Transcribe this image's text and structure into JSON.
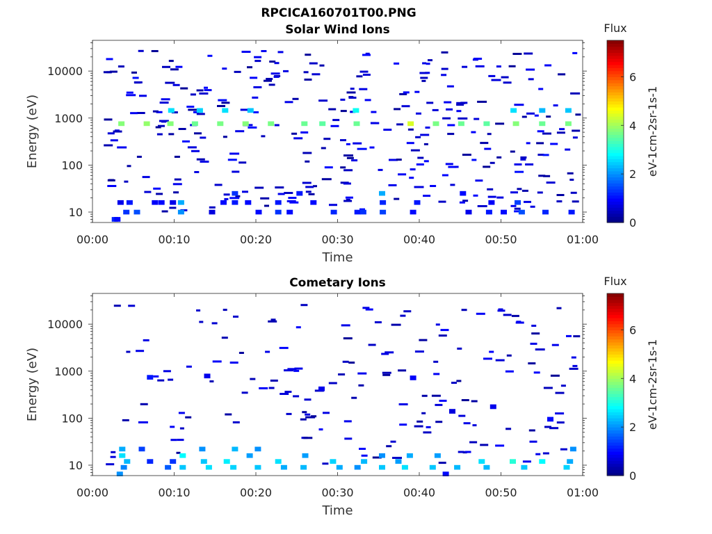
{
  "figure_title": "RPCICA160701T00.PNG",
  "chart_data": [
    {
      "type": "heatmap",
      "title": "Solar Wind Ions",
      "xlabel": "Time",
      "ylabel": "Energy (eV)",
      "x_ticks": [
        "00:00",
        "00:10",
        "00:20",
        "00:30",
        "00:40",
        "00:50",
        "01:00"
      ],
      "x_range_minutes": [
        0,
        60
      ],
      "y_scale": "log",
      "y_ticks": [
        10,
        100,
        1000,
        10000
      ],
      "y_tick_labels": [
        "10",
        "100",
        "1000",
        "10000"
      ],
      "y_range": [
        6,
        45000
      ],
      "colorbar": {
        "label": "Flux",
        "units": "eV-1cm-2sr-1s-1",
        "ticks": [
          0,
          2,
          4,
          6
        ],
        "range": [
          0,
          7.5
        ],
        "colormap": "jet"
      },
      "grid": false,
      "cells": [
        {
          "t": 2.7,
          "e": 7,
          "v": 1.2
        },
        {
          "t": 3.0,
          "e": 7,
          "v": 1.0
        },
        {
          "t": 3.4,
          "e": 16,
          "v": 0.8
        },
        {
          "t": 3.5,
          "e": 760,
          "v": 3.8
        },
        {
          "t": 4.1,
          "e": 10,
          "v": 1.3
        },
        {
          "t": 4.5,
          "e": 16,
          "v": 1.1
        },
        {
          "t": 5.4,
          "e": 10,
          "v": 1.5
        },
        {
          "t": 6.6,
          "e": 760,
          "v": 3.9
        },
        {
          "t": 7.6,
          "e": 16,
          "v": 0.9
        },
        {
          "t": 8.4,
          "e": 16,
          "v": 1.0
        },
        {
          "t": 9.5,
          "e": 760,
          "v": 3.8
        },
        {
          "t": 9.8,
          "e": 16,
          "v": 0.8
        },
        {
          "t": 9.6,
          "e": 1450,
          "v": 2.6
        },
        {
          "t": 10.8,
          "e": 10,
          "v": 2.0
        },
        {
          "t": 10.8,
          "e": 16,
          "v": 2.2
        },
        {
          "t": 12.5,
          "e": 760,
          "v": 3.6
        },
        {
          "t": 13.1,
          "e": 1450,
          "v": 2.5
        },
        {
          "t": 14.6,
          "e": 10,
          "v": 0.7
        },
        {
          "t": 15.6,
          "e": 760,
          "v": 3.7
        },
        {
          "t": 16.2,
          "e": 1450,
          "v": 2.6
        },
        {
          "t": 16.0,
          "e": 16,
          "v": 1.0
        },
        {
          "t": 17.4,
          "e": 16,
          "v": 1.1
        },
        {
          "t": 17.4,
          "e": 25,
          "v": 1.3
        },
        {
          "t": 18.7,
          "e": 760,
          "v": 3.8
        },
        {
          "t": 19.0,
          "e": 16,
          "v": 1.0
        },
        {
          "t": 19.3,
          "e": 1450,
          "v": 2.4
        },
        {
          "t": 20.3,
          "e": 10,
          "v": 1.0
        },
        {
          "t": 21.8,
          "e": 760,
          "v": 3.7
        },
        {
          "t": 22.7,
          "e": 10,
          "v": 1.3
        },
        {
          "t": 22.7,
          "e": 16,
          "v": 1.1
        },
        {
          "t": 24.1,
          "e": 10,
          "v": 1.0
        },
        {
          "t": 25.3,
          "e": 25,
          "v": 1.1
        },
        {
          "t": 25.9,
          "e": 760,
          "v": 3.6
        },
        {
          "t": 27.0,
          "e": 16,
          "v": 1.0
        },
        {
          "t": 28.1,
          "e": 760,
          "v": 3.5
        },
        {
          "t": 29.5,
          "e": 10,
          "v": 1.2
        },
        {
          "t": 32.2,
          "e": 1450,
          "v": 2.9
        },
        {
          "t": 32.3,
          "e": 760,
          "v": 3.6
        },
        {
          "t": 32.4,
          "e": 10,
          "v": 1.1
        },
        {
          "t": 33.1,
          "e": 10,
          "v": 1.3
        },
        {
          "t": 35.4,
          "e": 25,
          "v": 2.2
        },
        {
          "t": 35.5,
          "e": 16,
          "v": 1.2
        },
        {
          "t": 35.5,
          "e": 10,
          "v": 1.4
        },
        {
          "t": 38.9,
          "e": 760,
          "v": 4.4
        },
        {
          "t": 39.2,
          "e": 10,
          "v": 1.0
        },
        {
          "t": 39.7,
          "e": 16,
          "v": 1.1
        },
        {
          "t": 42.0,
          "e": 760,
          "v": 3.7
        },
        {
          "t": 45.1,
          "e": 760,
          "v": 3.6
        },
        {
          "t": 45.3,
          "e": 25,
          "v": 1.0
        },
        {
          "t": 46.0,
          "e": 10,
          "v": 0.8
        },
        {
          "t": 48.2,
          "e": 760,
          "v": 3.5
        },
        {
          "t": 48.5,
          "e": 10,
          "v": 1.1
        },
        {
          "t": 48.8,
          "e": 16,
          "v": 0.9
        },
        {
          "t": 50.3,
          "e": 10,
          "v": 1.0
        },
        {
          "t": 51.5,
          "e": 1450,
          "v": 2.6
        },
        {
          "t": 51.8,
          "e": 760,
          "v": 3.8
        },
        {
          "t": 52.0,
          "e": 16,
          "v": 1.4
        },
        {
          "t": 52.5,
          "e": 10,
          "v": 1.5
        },
        {
          "t": 55.0,
          "e": 760,
          "v": 3.6
        },
        {
          "t": 55.0,
          "e": 1450,
          "v": 2.3
        },
        {
          "t": 55.4,
          "e": 10,
          "v": 1.2
        },
        {
          "t": 58.2,
          "e": 760,
          "v": 3.7
        },
        {
          "t": 58.2,
          "e": 1450,
          "v": 2.4
        },
        {
          "t": 58.6,
          "e": 10,
          "v": 1.1
        }
      ]
    },
    {
      "type": "heatmap",
      "title": "Cometary Ions",
      "xlabel": "Time",
      "ylabel": "Energy (eV)",
      "x_ticks": [
        "00:00",
        "00:10",
        "00:20",
        "00:30",
        "00:40",
        "00:50",
        "01:00"
      ],
      "x_range_minutes": [
        0,
        60
      ],
      "y_scale": "log",
      "y_ticks": [
        10,
        100,
        1000,
        10000
      ],
      "y_tick_labels": [
        "10",
        "100",
        "1000",
        "10000"
      ],
      "y_range": [
        6,
        45000
      ],
      "colorbar": {
        "label": "Flux",
        "units": "eV-1cm-2sr-1s-1",
        "ticks": [
          0,
          2,
          4,
          6
        ],
        "range": [
          0,
          7.5
        ],
        "colormap": "jet"
      },
      "grid": false,
      "cells": [
        {
          "t": 3.6,
          "e": 22,
          "v": 2.2
        },
        {
          "t": 3.6,
          "e": 16,
          "v": 2.6
        },
        {
          "t": 4.2,
          "e": 12,
          "v": 2.3
        },
        {
          "t": 3.8,
          "e": 9,
          "v": 1.9
        },
        {
          "t": 6.0,
          "e": 22,
          "v": 1.4
        },
        {
          "t": 7.0,
          "e": 12,
          "v": 1.2
        },
        {
          "t": 9.2,
          "e": 9,
          "v": 1.6
        },
        {
          "t": 9.8,
          "e": 12,
          "v": 1.3
        },
        {
          "t": 11.0,
          "e": 9,
          "v": 2.4
        },
        {
          "t": 11.0,
          "e": 16,
          "v": 2.8
        },
        {
          "t": 13.4,
          "e": 22,
          "v": 2.0
        },
        {
          "t": 13.6,
          "e": 12,
          "v": 2.4
        },
        {
          "t": 14.2,
          "e": 9,
          "v": 2.6
        },
        {
          "t": 16.4,
          "e": 12,
          "v": 2.7
        },
        {
          "t": 17.4,
          "e": 22,
          "v": 2.3
        },
        {
          "t": 17.2,
          "e": 9,
          "v": 2.5
        },
        {
          "t": 19.2,
          "e": 16,
          "v": 2.1
        },
        {
          "t": 20.2,
          "e": 9,
          "v": 2.4
        },
        {
          "t": 20.2,
          "e": 22,
          "v": 2.0
        },
        {
          "t": 22.7,
          "e": 12,
          "v": 2.6
        },
        {
          "t": 23.4,
          "e": 9,
          "v": 2.2
        },
        {
          "t": 25.8,
          "e": 9,
          "v": 2.3
        },
        {
          "t": 26.0,
          "e": 16,
          "v": 2.1
        },
        {
          "t": 29.4,
          "e": 12,
          "v": 2.5
        },
        {
          "t": 30.2,
          "e": 9,
          "v": 2.2
        },
        {
          "t": 32.4,
          "e": 9,
          "v": 2.0
        },
        {
          "t": 33.2,
          "e": 12,
          "v": 2.3
        },
        {
          "t": 35.4,
          "e": 9,
          "v": 2.4
        },
        {
          "t": 35.4,
          "e": 16,
          "v": 2.0
        },
        {
          "t": 37.4,
          "e": 12,
          "v": 2.1
        },
        {
          "t": 38.2,
          "e": 9,
          "v": 2.6
        },
        {
          "t": 38.8,
          "e": 16,
          "v": 2.2
        },
        {
          "t": 41.6,
          "e": 9,
          "v": 2.4
        },
        {
          "t": 42.2,
          "e": 16,
          "v": 2.1
        },
        {
          "t": 44.6,
          "e": 9,
          "v": 2.3
        },
        {
          "t": 47.6,
          "e": 12,
          "v": 2.6
        },
        {
          "t": 48.2,
          "e": 9,
          "v": 2.3
        },
        {
          "t": 51.4,
          "e": 12,
          "v": 3.1
        },
        {
          "t": 52.8,
          "e": 9,
          "v": 2.4
        },
        {
          "t": 55.0,
          "e": 12,
          "v": 2.8
        },
        {
          "t": 58.0,
          "e": 9,
          "v": 2.5
        },
        {
          "t": 58.4,
          "e": 12,
          "v": 2.2
        },
        {
          "t": 58.8,
          "e": 22,
          "v": 2.0
        },
        {
          "t": 43.2,
          "e": 6.5,
          "v": 1.0
        },
        {
          "t": 3.3,
          "e": 6.5,
          "v": 2.0
        },
        {
          "t": 14.0,
          "e": 790,
          "v": 0.8
        },
        {
          "t": 28.0,
          "e": 420,
          "v": 0.8
        },
        {
          "t": 39.2,
          "e": 720,
          "v": 0.9
        },
        {
          "t": 7.0,
          "e": 740,
          "v": 1.1
        },
        {
          "t": 44.0,
          "e": 140,
          "v": 0.7
        },
        {
          "t": 49.0,
          "e": 175,
          "v": 0.8
        },
        {
          "t": 56.0,
          "e": 95,
          "v": 1.0
        }
      ]
    }
  ]
}
